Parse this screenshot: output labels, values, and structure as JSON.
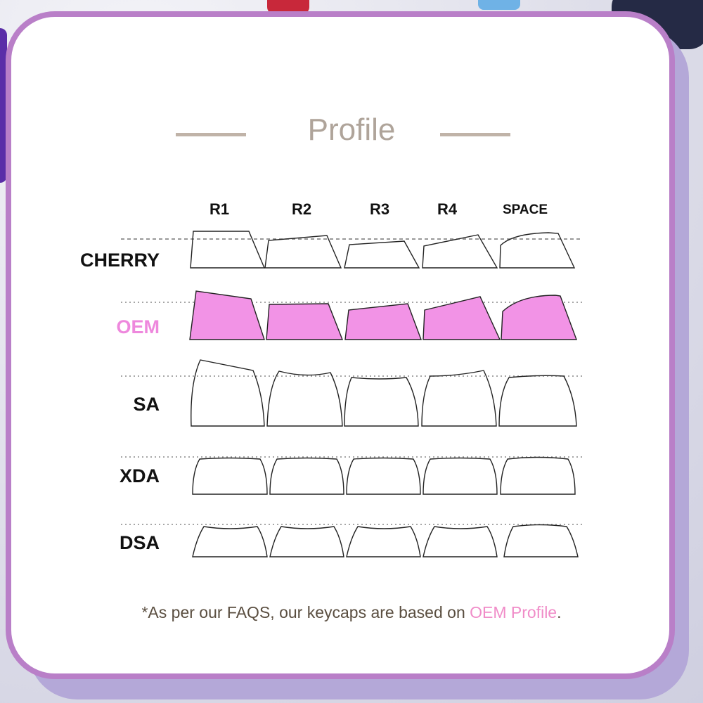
{
  "title": "Profile",
  "columns": [
    "R1",
    "R2",
    "R3",
    "R4",
    "SPACE"
  ],
  "rows": [
    {
      "label": "CHERRY",
      "color": "#111111"
    },
    {
      "label": "OEM",
      "color": "#ee88dd",
      "highlighted": true
    },
    {
      "label": "SA",
      "color": "#111111"
    },
    {
      "label": "XDA",
      "color": "#111111"
    },
    {
      "label": "DSA",
      "color": "#111111"
    }
  ],
  "footnote": {
    "text": "*As per our FAQS, our keycaps are based on ",
    "highlight": "OEM Profile",
    "end": "."
  },
  "colors": {
    "accent": "#f293e6",
    "border": "#b97fc8",
    "title": "#afa49a"
  }
}
